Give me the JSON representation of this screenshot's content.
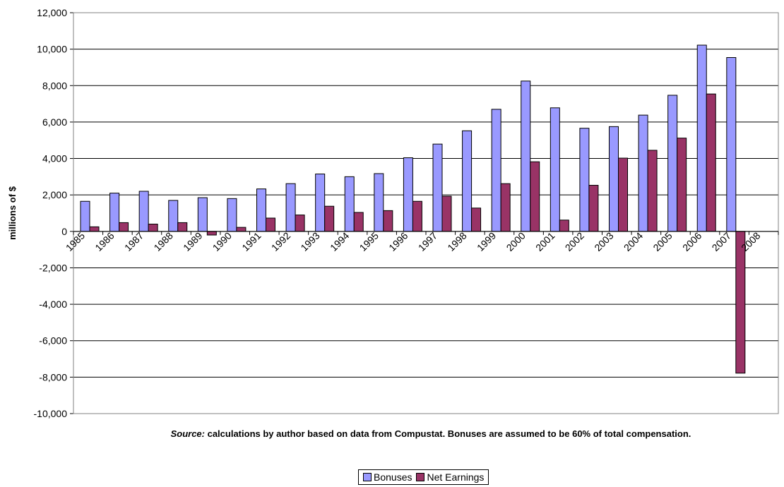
{
  "chart_data": {
    "type": "bar",
    "categories": [
      "1985",
      "1986",
      "1987",
      "1988",
      "1989",
      "1990",
      "1991",
      "1992",
      "1993",
      "1994",
      "1995",
      "1996",
      "1997",
      "1998",
      "1999",
      "2000",
      "2001",
      "2002",
      "2003",
      "2004",
      "2005",
      "2006",
      "2007",
      "2008"
    ],
    "series": [
      {
        "name": "Bonuses",
        "color": "#9999ff",
        "values": [
          1650,
          2100,
          2200,
          1700,
          1850,
          1800,
          2330,
          2620,
          3150,
          3000,
          3170,
          4040,
          4790,
          5520,
          6700,
          8250,
          6780,
          5660,
          5750,
          6380,
          7470,
          10220,
          9540,
          null
        ]
      },
      {
        "name": "Net Earnings",
        "color": "#993366",
        "values": [
          250,
          480,
          400,
          480,
          -200,
          220,
          730,
          900,
          1380,
          1040,
          1140,
          1650,
          1930,
          1280,
          2620,
          3820,
          620,
          2530,
          4020,
          4450,
          5120,
          7540,
          -7780,
          null
        ]
      }
    ],
    "ylabel": "millions of $",
    "ylim": [
      -10000,
      12000
    ],
    "ytick_step": 2000,
    "yticks": [
      "-10,000",
      "-8,000",
      "-6,000",
      "-4,000",
      "-2,000",
      "0",
      "2,000",
      "4,000",
      "6,000",
      "8,000",
      "10,000",
      "12,000"
    ],
    "grid": true,
    "legend_position": "bottom"
  },
  "caption": {
    "source_label": "Source:",
    "text": " calculations by author based on data from Compustat. Bonuses are assumed to be 60% of total compensation."
  }
}
